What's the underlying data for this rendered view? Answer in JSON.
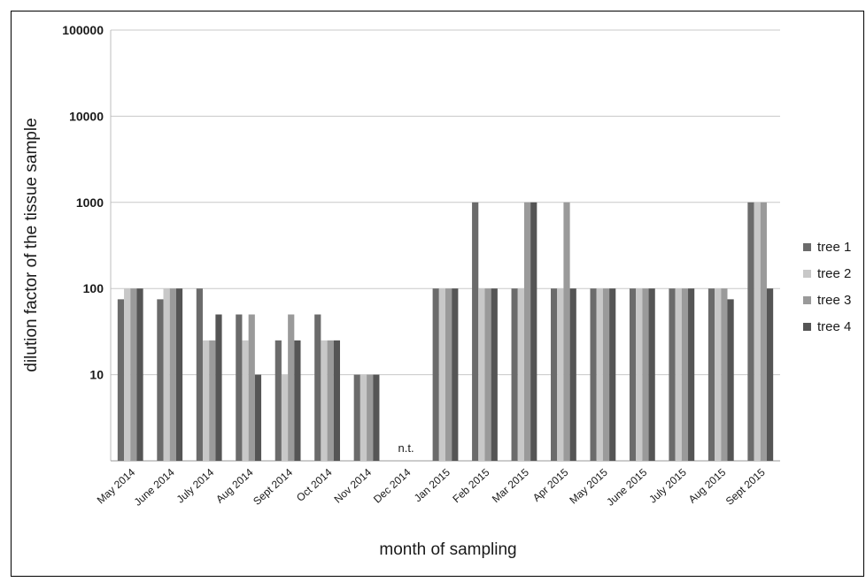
{
  "chart_data": {
    "type": "bar",
    "title": "",
    "xlabel": "month of  sampling",
    "ylabel": "dilution factor of  the tissue  sample",
    "y_scale": "log",
    "ylim": [
      1,
      100000
    ],
    "y_ticks": [
      10,
      100,
      1000,
      10000,
      100000
    ],
    "y_tick_labels": [
      "10",
      "100",
      "1000",
      "10000",
      "100000"
    ],
    "grid": "horizontal",
    "legend_position": "right",
    "categories": [
      "May 2014",
      "June 2014",
      "July 2014",
      "Aug 2014",
      "Sept 2014",
      "Oct 2014",
      "Nov 2014",
      "Dec 2014",
      "Jan 2015",
      "Feb 2015",
      "Mar 2015",
      "Apr 2015",
      "May 2015",
      "June 2015",
      "July 2015",
      "Aug 2015",
      "Sept 2015"
    ],
    "series": [
      {
        "name": "tree 1",
        "color": "#6b6b6b",
        "values": [
          75,
          75,
          100,
          50,
          25,
          50,
          10,
          null,
          100,
          1000,
          100,
          100,
          100,
          100,
          100,
          100,
          1000
        ]
      },
      {
        "name": "tree 2",
        "color": "#c8c8c8",
        "values": [
          100,
          100,
          25,
          25,
          10,
          25,
          10,
          null,
          100,
          100,
          100,
          100,
          100,
          100,
          100,
          100,
          1000
        ]
      },
      {
        "name": "tree 3",
        "color": "#9a9a9a",
        "values": [
          100,
          100,
          25,
          50,
          50,
          25,
          10,
          null,
          100,
          100,
          1000,
          1000,
          100,
          100,
          100,
          100,
          1000
        ]
      },
      {
        "name": "tree 4",
        "color": "#555555",
        "values": [
          100,
          100,
          50,
          10,
          25,
          25,
          10,
          null,
          100,
          100,
          1000,
          100,
          100,
          100,
          100,
          75,
          100
        ]
      }
    ],
    "annotations": [
      {
        "category": "Dec 2014",
        "text": "n.t."
      }
    ]
  }
}
